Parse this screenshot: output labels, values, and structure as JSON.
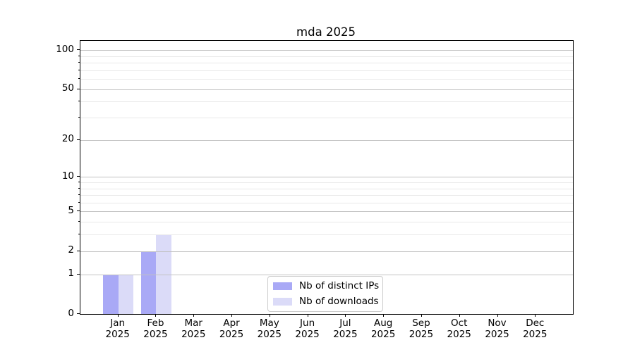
{
  "title": "mda 2025",
  "legend": {
    "items": [
      {
        "label": "Nb of distinct IPs",
        "color": "#a9a9f6",
        "icon": "legend-swatch-distinct-ips"
      },
      {
        "label": "Nb of downloads",
        "color": "#dbdbf8",
        "icon": "legend-swatch-downloads"
      }
    ]
  },
  "chart_data": {
    "type": "bar",
    "title": "mda 2025",
    "categories": [
      {
        "month": "Jan",
        "year": "2025"
      },
      {
        "month": "Feb",
        "year": "2025"
      },
      {
        "month": "Mar",
        "year": "2025"
      },
      {
        "month": "Apr",
        "year": "2025"
      },
      {
        "month": "May",
        "year": "2025"
      },
      {
        "month": "Jun",
        "year": "2025"
      },
      {
        "month": "Jul",
        "year": "2025"
      },
      {
        "month": "Aug",
        "year": "2025"
      },
      {
        "month": "Sep",
        "year": "2025"
      },
      {
        "month": "Oct",
        "year": "2025"
      },
      {
        "month": "Nov",
        "year": "2025"
      },
      {
        "month": "Dec",
        "year": "2025"
      }
    ],
    "series": [
      {
        "name": "Nb of distinct IPs",
        "color": "#a9a9f6",
        "values": [
          1,
          2,
          0,
          0,
          0,
          0,
          0,
          0,
          0,
          0,
          0,
          0
        ]
      },
      {
        "name": "Nb of downloads",
        "color": "#dbdbf8",
        "values": [
          1,
          3,
          0,
          0,
          0,
          0,
          0,
          0,
          0,
          0,
          0,
          0
        ]
      }
    ],
    "y_scale": "log10(1+v)",
    "y_major_ticks": [
      0,
      1,
      2,
      5,
      10,
      20,
      50,
      100
    ],
    "y_major_tick_labels": [
      "0",
      "1",
      "2",
      "5",
      "10",
      "20",
      "50",
      "100"
    ],
    "y_minor_ticks": [
      3,
      4,
      6,
      7,
      8,
      9,
      30,
      40,
      60,
      70,
      80,
      90
    ],
    "ylim": [
      0,
      118
    ],
    "grid": "on",
    "legend_position": "lower center",
    "xlabel": "",
    "ylabel": ""
  }
}
